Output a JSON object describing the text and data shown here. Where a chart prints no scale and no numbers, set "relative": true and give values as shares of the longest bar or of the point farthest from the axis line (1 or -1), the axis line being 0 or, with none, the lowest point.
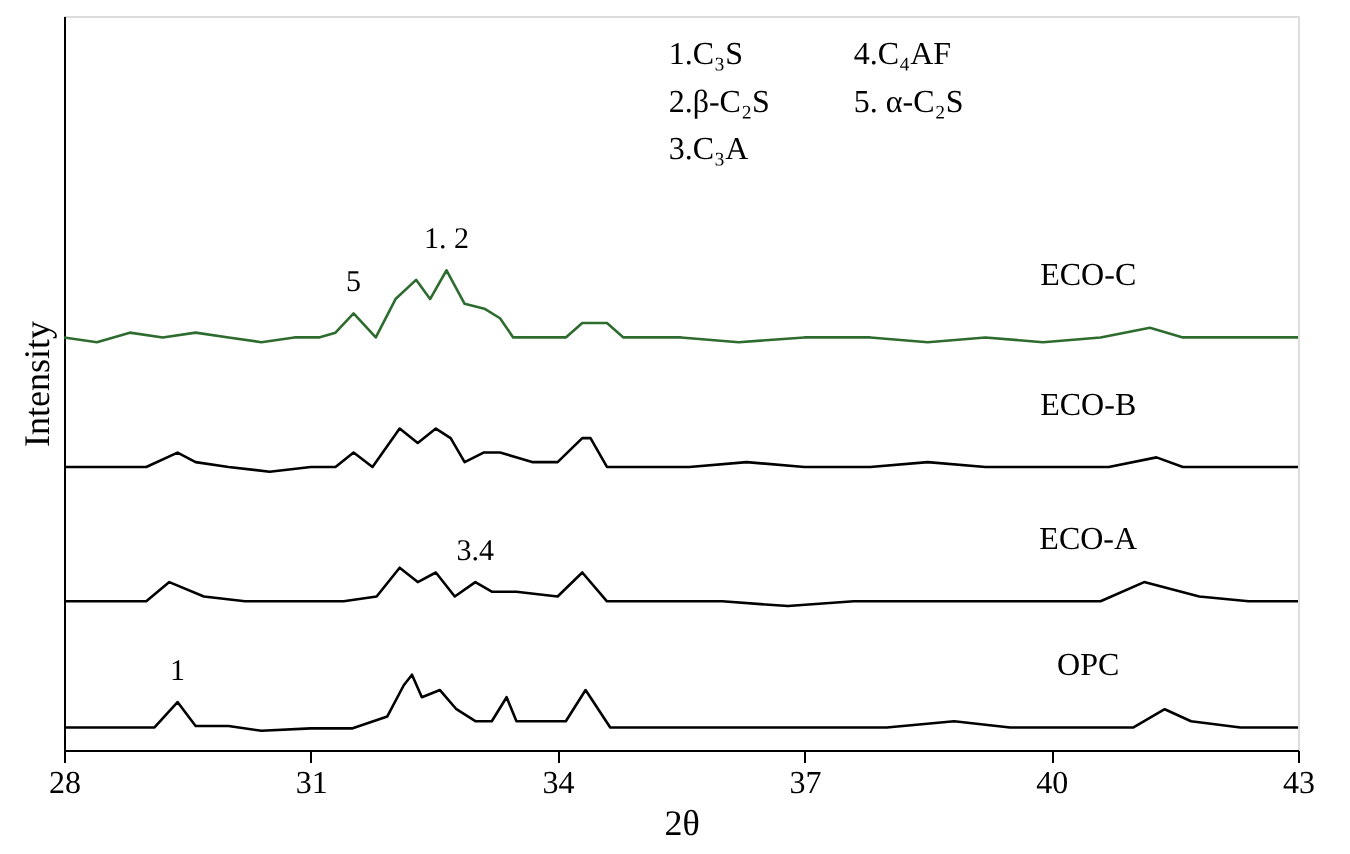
{
  "chart_data": {
    "type": "line",
    "relative": true,
    "xlabel": "2θ",
    "ylabel": "Intensity",
    "xlim": [
      28,
      43
    ],
    "xticks": [
      28,
      31,
      34,
      37,
      40,
      43
    ],
    "tick_labels": "x",
    "grid": false,
    "legend": false,
    "line_style": "solid",
    "marker": "none",
    "series": [
      {
        "name": "ECO-C",
        "color": "#2e6b2e",
        "x": [
          28,
          28.4,
          28.8,
          29.2,
          29.6,
          30.0,
          30.4,
          30.8,
          31.1,
          31.3,
          31.52,
          31.79,
          32.03,
          32.28,
          32.45,
          32.65,
          32.87,
          33.11,
          33.3,
          33.46,
          33.8,
          34.1,
          34.3,
          34.6,
          34.8,
          35.5,
          36.2,
          37.0,
          37.8,
          38.5,
          39.2,
          39.9,
          40.6,
          41.2,
          41.6,
          42.2,
          43
        ],
        "values": [
          0.86,
          0.85,
          0.87,
          0.86,
          0.87,
          0.86,
          0.85,
          0.86,
          0.86,
          0.87,
          0.91,
          0.86,
          0.94,
          0.98,
          0.94,
          1.0,
          0.93,
          0.92,
          0.9,
          0.86,
          0.86,
          0.86,
          0.89,
          0.89,
          0.86,
          0.86,
          0.85,
          0.86,
          0.86,
          0.85,
          0.86,
          0.85,
          0.86,
          0.88,
          0.86,
          0.86,
          0.86
        ]
      },
      {
        "name": "ECO-B",
        "color": "#000000",
        "x": [
          28,
          28.5,
          29.0,
          29.38,
          29.6,
          30.0,
          30.5,
          31.0,
          31.3,
          31.52,
          31.75,
          32.08,
          32.3,
          32.52,
          32.7,
          32.87,
          33.1,
          33.3,
          33.7,
          34.0,
          34.3,
          34.4,
          34.6,
          35.0,
          35.6,
          36.3,
          37.0,
          37.8,
          38.5,
          39.2,
          40.0,
          40.7,
          41.28,
          41.6,
          42.2,
          43
        ],
        "values": [
          0.59,
          0.59,
          0.59,
          0.62,
          0.6,
          0.59,
          0.58,
          0.59,
          0.59,
          0.62,
          0.59,
          0.67,
          0.64,
          0.67,
          0.65,
          0.6,
          0.62,
          0.62,
          0.6,
          0.6,
          0.65,
          0.65,
          0.59,
          0.59,
          0.59,
          0.6,
          0.59,
          0.59,
          0.6,
          0.59,
          0.59,
          0.59,
          0.61,
          0.59,
          0.59,
          0.59
        ]
      },
      {
        "name": "ECO-A",
        "color": "#000000",
        "x": [
          28,
          28.5,
          29.0,
          29.28,
          29.7,
          30.2,
          30.8,
          31.4,
          31.8,
          32.08,
          32.3,
          32.52,
          32.75,
          33.0,
          33.2,
          33.5,
          34.0,
          34.3,
          34.6,
          35.2,
          36.0,
          36.8,
          37.6,
          38.4,
          39.2,
          40.0,
          40.6,
          41.13,
          41.8,
          42.4,
          43
        ],
        "values": [
          0.31,
          0.31,
          0.31,
          0.35,
          0.32,
          0.31,
          0.31,
          0.31,
          0.32,
          0.38,
          0.35,
          0.37,
          0.32,
          0.35,
          0.33,
          0.33,
          0.32,
          0.37,
          0.31,
          0.31,
          0.31,
          0.3,
          0.31,
          0.31,
          0.31,
          0.31,
          0.31,
          0.35,
          0.32,
          0.31,
          0.31
        ]
      },
      {
        "name": "OPC",
        "color": "#000000",
        "x": [
          28,
          28.6,
          29.1,
          29.38,
          29.6,
          30.0,
          30.4,
          31.0,
          31.5,
          31.93,
          32.13,
          32.23,
          32.35,
          32.57,
          32.77,
          33.0,
          33.2,
          33.38,
          33.5,
          34.1,
          34.34,
          34.64,
          35.2,
          36.0,
          37.0,
          38.0,
          38.82,
          39.5,
          40.3,
          41.0,
          41.38,
          41.7,
          42.3,
          43
        ],
        "values": [
          0.047,
          0.047,
          0.047,
          0.1,
          0.05,
          0.05,
          0.04,
          0.045,
          0.045,
          0.07,
          0.135,
          0.157,
          0.11,
          0.125,
          0.085,
          0.06,
          0.06,
          0.11,
          0.06,
          0.06,
          0.125,
          0.047,
          0.047,
          0.047,
          0.047,
          0.047,
          0.06,
          0.047,
          0.047,
          0.047,
          0.085,
          0.06,
          0.047,
          0.047
        ]
      }
    ],
    "annotations": [
      {
        "text": "5",
        "x": 31.52,
        "y": 0.91
      },
      {
        "text": "1. 2",
        "x": 32.65,
        "y": 1.0
      },
      {
        "text": "3.4",
        "x": 33.0,
        "y": 0.35
      },
      {
        "text": "1",
        "x": 29.38,
        "y": 0.1
      },
      "1.C₃S",
      "2.β-C₂S",
      "3.C₃A",
      "4.C₄AF",
      "5. α-C₂S"
    ]
  }
}
